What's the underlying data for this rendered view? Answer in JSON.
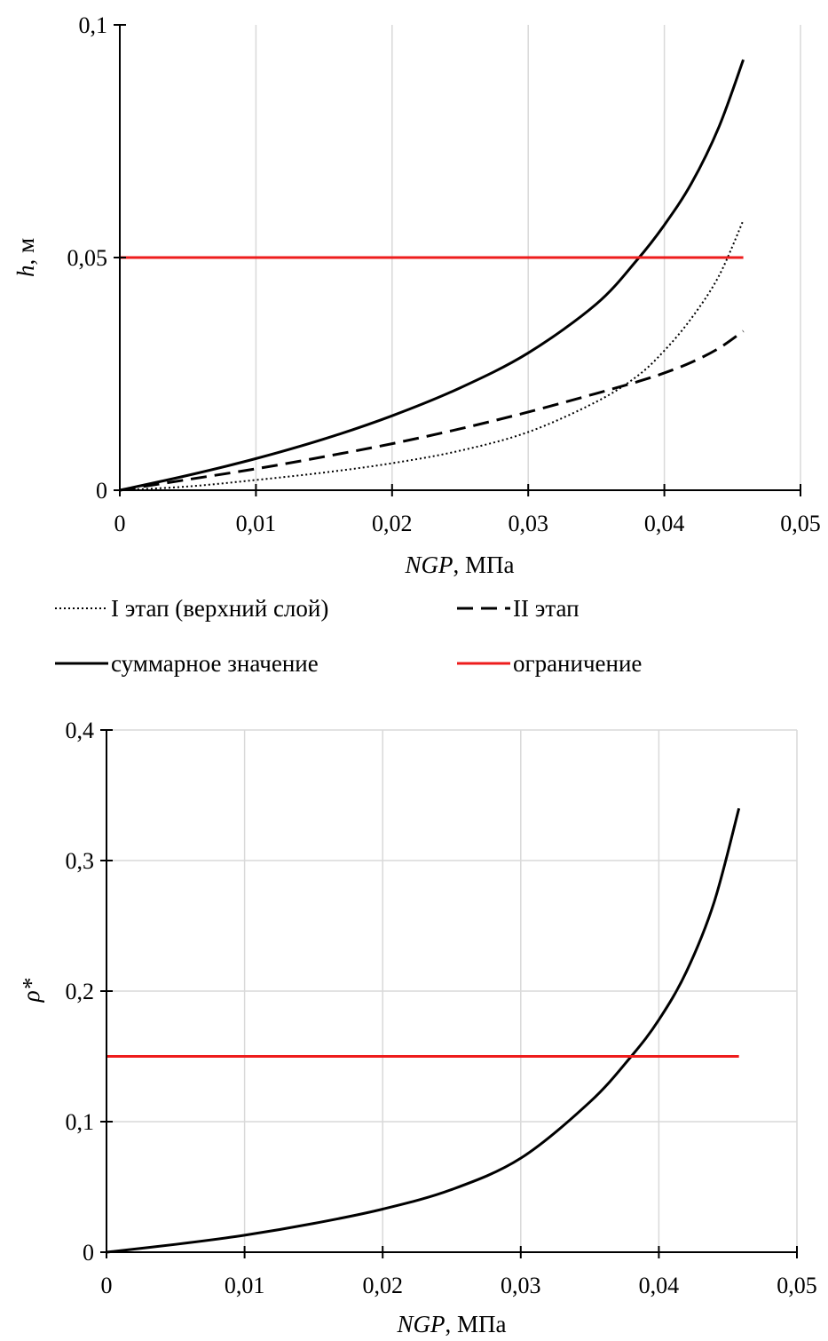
{
  "chart_data": [
    {
      "type": "line",
      "xlabel": {
        "var": "NGP",
        "unit": ", МПа"
      },
      "ylabel": {
        "var": "h",
        "unit": ", м"
      },
      "xlim": [
        0,
        0.05
      ],
      "ylim": [
        0,
        0.1
      ],
      "x_ticks": [
        "0",
        "0,01",
        "0,02",
        "0,03",
        "0,04",
        "0,05"
      ],
      "y_ticks": [
        "0",
        "0,05",
        "0,1"
      ],
      "grid": "vertical",
      "legend_position": "bottom",
      "x": [
        0,
        0.005,
        0.01,
        0.015,
        0.02,
        0.025,
        0.03,
        0.035,
        0.038,
        0.04,
        0.042,
        0.044,
        0.0458
      ],
      "series": [
        {
          "name": "I этап (верхний слой)",
          "color": "#000000",
          "style": "dotted",
          "values": [
            0,
            0.0008,
            0.0022,
            0.0038,
            0.0058,
            0.0085,
            0.0125,
            0.019,
            0.0245,
            0.03,
            0.037,
            0.046,
            0.058
          ]
        },
        {
          "name": "II этап",
          "color": "#000000",
          "style": "dashed",
          "values": [
            0,
            0.0023,
            0.0046,
            0.0072,
            0.01,
            0.0132,
            0.0168,
            0.0208,
            0.0233,
            0.0252,
            0.0275,
            0.0305,
            0.0342
          ]
        },
        {
          "name": "суммарное  значение",
          "color": "#000000",
          "style": "solid",
          "values": [
            0,
            0.0032,
            0.0068,
            0.011,
            0.016,
            0.022,
            0.0295,
            0.04,
            0.0495,
            0.057,
            0.066,
            0.078,
            0.0925
          ]
        },
        {
          "name": "ограничение",
          "color": "#ee1c1c",
          "style": "solid",
          "values": [
            0.05,
            0.05,
            0.05,
            0.05,
            0.05,
            0.05,
            0.05,
            0.05,
            0.05,
            0.05,
            0.05,
            0.05,
            0.05
          ]
        }
      ]
    },
    {
      "type": "line",
      "xlabel": {
        "var": "NGP",
        "unit": ", МПа"
      },
      "ylabel": {
        "var": "ρ*",
        "unit": ""
      },
      "xlim": [
        0,
        0.05
      ],
      "ylim": [
        0,
        0.4
      ],
      "x_ticks": [
        "0",
        "0,01",
        "0,02",
        "0,03",
        "0,04",
        "0,05"
      ],
      "y_ticks": [
        "0",
        "0,1",
        "0,2",
        "0,3",
        "0,4"
      ],
      "grid": "both",
      "x": [
        0,
        0.005,
        0.01,
        0.015,
        0.02,
        0.025,
        0.03,
        0.035,
        0.038,
        0.04,
        0.042,
        0.044,
        0.0458
      ],
      "series": [
        {
          "color": "#000000",
          "style": "solid",
          "values": [
            0,
            0.006,
            0.013,
            0.022,
            0.033,
            0.048,
            0.072,
            0.115,
            0.15,
            0.178,
            0.215,
            0.268,
            0.34
          ]
        },
        {
          "color": "#ee1c1c",
          "style": "solid",
          "values": [
            0.15,
            0.15,
            0.15,
            0.15,
            0.15,
            0.15,
            0.15,
            0.15,
            0.15,
            0.15,
            0.15,
            0.15,
            0.15
          ]
        }
      ]
    }
  ]
}
